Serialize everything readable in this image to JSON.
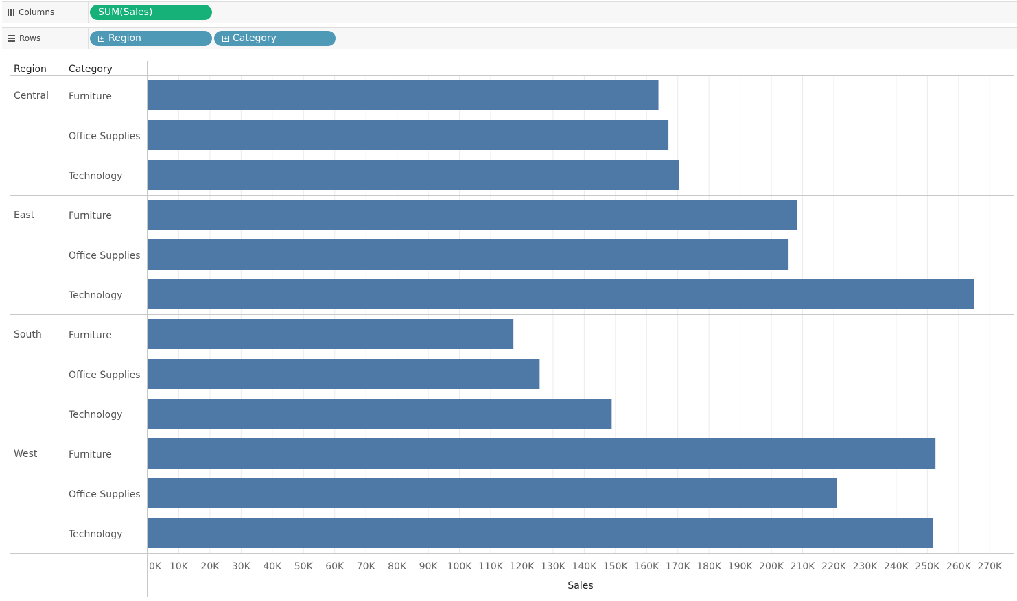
{
  "shelves": {
    "columns": {
      "label": "Columns",
      "pills": [
        "SUM(Sales)"
      ],
      "pill_color": "#16b079"
    },
    "rows": {
      "label": "Rows",
      "pills": [
        "Region",
        "Category"
      ],
      "pill_color": "#4e99b6"
    }
  },
  "headers": {
    "region": "Region",
    "category": "Category"
  },
  "colors": {
    "bar": "#4e79a7",
    "grid": "#ececec",
    "divider": "#c8c8c8"
  },
  "chart_data": {
    "type": "bar",
    "orientation": "horizontal",
    "xlabel": "Sales",
    "xlim": [
      0,
      275000
    ],
    "x_ticks": [
      0,
      10000,
      20000,
      30000,
      40000,
      50000,
      60000,
      70000,
      80000,
      90000,
      100000,
      110000,
      120000,
      130000,
      140000,
      150000,
      160000,
      170000,
      180000,
      190000,
      200000,
      210000,
      220000,
      230000,
      240000,
      250000,
      260000,
      270000
    ],
    "x_tick_labels": [
      "0K",
      "10K",
      "20K",
      "30K",
      "40K",
      "50K",
      "60K",
      "70K",
      "80K",
      "90K",
      "100K",
      "110K",
      "120K",
      "130K",
      "140K",
      "150K",
      "160K",
      "170K",
      "180K",
      "190K",
      "200K",
      "210K",
      "220K",
      "230K",
      "240K",
      "250K",
      "260K",
      "270K"
    ],
    "grid": true,
    "groups": [
      {
        "region": "Central",
        "bars": [
          {
            "category": "Furniture",
            "value": 163800
          },
          {
            "category": "Office Supplies",
            "value": 167000
          },
          {
            "category": "Technology",
            "value": 170400
          }
        ]
      },
      {
        "region": "East",
        "bars": [
          {
            "category": "Furniture",
            "value": 208300
          },
          {
            "category": "Office Supplies",
            "value": 205500
          },
          {
            "category": "Technology",
            "value": 264900
          }
        ]
      },
      {
        "region": "South",
        "bars": [
          {
            "category": "Furniture",
            "value": 117300
          },
          {
            "category": "Office Supplies",
            "value": 125700
          },
          {
            "category": "Technology",
            "value": 148800
          }
        ]
      },
      {
        "region": "West",
        "bars": [
          {
            "category": "Furniture",
            "value": 252600
          },
          {
            "category": "Office Supplies",
            "value": 220900
          },
          {
            "category": "Technology",
            "value": 251900
          }
        ]
      }
    ]
  }
}
